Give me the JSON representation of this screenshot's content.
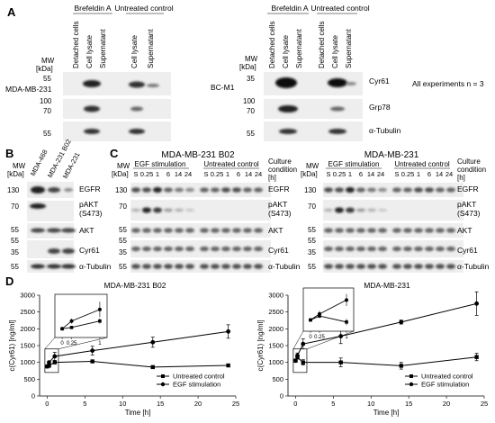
{
  "panel_A": {
    "letter": "A",
    "left": {
      "cell_line": "MDA-MB-231",
      "mw": "MW",
      "mw_unit": "[kDa]",
      "group1": "Brefeldin A",
      "group2": "Untreated control",
      "lanes": [
        "Detached cells",
        "Cell lysate",
        "Supernatant",
        "Cell lysate",
        "Supernatant"
      ],
      "markers": [
        "55",
        "100",
        "70",
        "55"
      ]
    },
    "right": {
      "cell_line": "BC-M1",
      "mw": "MW",
      "mw_unit": "[kDa]",
      "group1": "Brefeldin A",
      "group2": "Untreated control",
      "lanes": [
        "Detached cells",
        "Cell lysate",
        "Supernatant",
        "Detached cells",
        "Cell lysate",
        "Supernatant"
      ],
      "markers": [
        "35",
        "100",
        "70",
        "55"
      ],
      "proteins": [
        "Cyr61",
        "Grp78",
        "α-Tubulin"
      ]
    },
    "note": "All experiments n = 3"
  },
  "panel_B": {
    "letter": "B",
    "mw": "MW",
    "mw_unit": "[kDa]",
    "lanes": [
      "MDA-468",
      "MDA-231 B02",
      "MDA-231"
    ],
    "markers": [
      "130",
      "70",
      "55",
      "55",
      "35",
      "55"
    ],
    "proteins": [
      "EGFR",
      "pAKT",
      "(S473)",
      "AKT",
      "Cyr61",
      "α-Tubulin"
    ]
  },
  "panel_C": {
    "letter": "C",
    "left_title": "MDA-MB-231 B02",
    "right_title": "MDA-MB-231",
    "mw": "MW",
    "mw_unit": "[kDa]",
    "group1": "EGF stimulation",
    "group2": "Untreated control",
    "time_labels": [
      "S",
      "0.25",
      "1",
      "6",
      "14",
      "24"
    ],
    "culture": "Culture",
    "culture2": "condition",
    "culture3": "[h]",
    "markers": [
      "130",
      "70",
      "55",
      "55",
      "35",
      "55"
    ],
    "proteins": [
      "EGFR",
      "pAKT",
      "(S473)",
      "AKT",
      "Cyr61",
      "α-Tubulin"
    ]
  },
  "panel_D": {
    "letter": "D",
    "ylabel": "c(Cyr61) [ng/ml]",
    "xlabel": "Time [h]",
    "legend": [
      "Untreated control",
      "EGF stimulation"
    ]
  },
  "chart_data": [
    {
      "type": "line",
      "title": "MDA-MB-231 B02",
      "xlabel": "Time [h]",
      "ylabel": "c(Cyr61) [ng/ml]",
      "x": [
        0,
        0.25,
        1,
        6,
        14,
        24
      ],
      "xlim": [
        -1,
        25
      ],
      "ylim": [
        0,
        3000
      ],
      "xticks": [
        0,
        5,
        10,
        15,
        20,
        25
      ],
      "yticks": [
        0,
        500,
        1000,
        1500,
        2000,
        2500,
        3000
      ],
      "series": [
        {
          "name": "Untreated control",
          "marker": "square",
          "values": [
            880,
            900,
            1000,
            1030,
            860,
            910
          ],
          "errors": [
            20,
            20,
            40,
            40,
            30,
            30
          ]
        },
        {
          "name": "EGF stimulation",
          "marker": "circle",
          "values": [
            880,
            1000,
            1180,
            1350,
            1600,
            1920
          ],
          "errors": [
            20,
            40,
            120,
            130,
            150,
            200
          ]
        }
      ],
      "inset_xticks": [
        "0",
        "0.25",
        "1"
      ],
      "legend_position": "bottom-right"
    },
    {
      "type": "line",
      "title": "MDA-MB-231",
      "xlabel": "Time [h]",
      "ylabel": "c(Cyr61) [ng/ml]",
      "x": [
        0,
        0.25,
        1,
        6,
        14,
        24
      ],
      "xlim": [
        -1,
        25
      ],
      "ylim": [
        0,
        3000
      ],
      "xticks": [
        0,
        5,
        10,
        15,
        20,
        25
      ],
      "yticks": [
        0,
        500,
        1000,
        1500,
        2000,
        2500,
        3000
      ],
      "series": [
        {
          "name": "Untreated control",
          "marker": "square",
          "values": [
            1050,
            1150,
            1000,
            1000,
            900,
            1160
          ],
          "errors": [
            40,
            50,
            80,
            130,
            100,
            110
          ]
        },
        {
          "name": "EGF stimulation",
          "marker": "circle",
          "values": [
            1050,
            1200,
            1550,
            1780,
            2200,
            2750
          ],
          "errors": [
            40,
            80,
            150,
            220,
            60,
            350
          ]
        }
      ],
      "inset_xticks": [
        "0",
        "0.25",
        "1"
      ],
      "legend_position": "bottom-right"
    }
  ]
}
